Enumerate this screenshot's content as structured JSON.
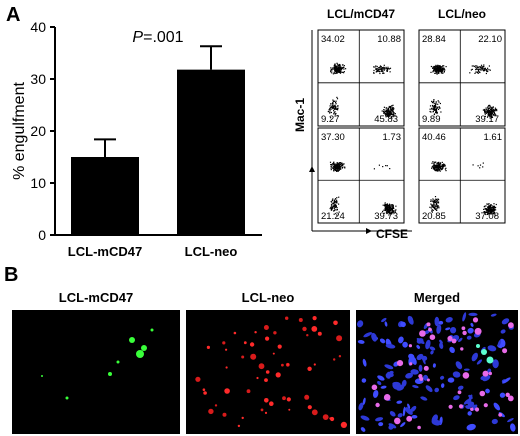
{
  "panel_a": {
    "letter": "A",
    "chart_data": {
      "type": "bar",
      "categories": [
        "LCL-mCD47",
        "LCL-neo"
      ],
      "values": [
        15,
        31.8
      ],
      "errors": [
        3.4,
        4.5
      ],
      "ylabel": "% engulfment",
      "ylim": [
        0,
        40
      ],
      "yticks": [
        "0",
        "10",
        "20",
        "30",
        "40"
      ],
      "annotation": "P=.001",
      "grid": false,
      "bar_color": "#000000"
    }
  },
  "flow": {
    "col_labels": [
      "LCL/mCD47",
      "LCL/neo"
    ],
    "y_axis_label": "Mac-1",
    "x_axis_label": "CFSE",
    "panels": [
      {
        "ul": "34.02",
        "ur": "10.88",
        "ll": "9.27",
        "lr": "45.83"
      },
      {
        "ul": "28.84",
        "ur": "22.10",
        "ll": "9.89",
        "lr": "39.17"
      },
      {
        "ul": "37.30",
        "ur": "1.73",
        "ll": "21.24",
        "lr": "39.73"
      },
      {
        "ul": "40.46",
        "ur": "1.61",
        "ll": "20.85",
        "lr": "37.08"
      }
    ]
  },
  "panel_b": {
    "letter": "B",
    "labels": [
      "LCL-mCD47",
      "LCL-neo",
      "Merged"
    ]
  }
}
